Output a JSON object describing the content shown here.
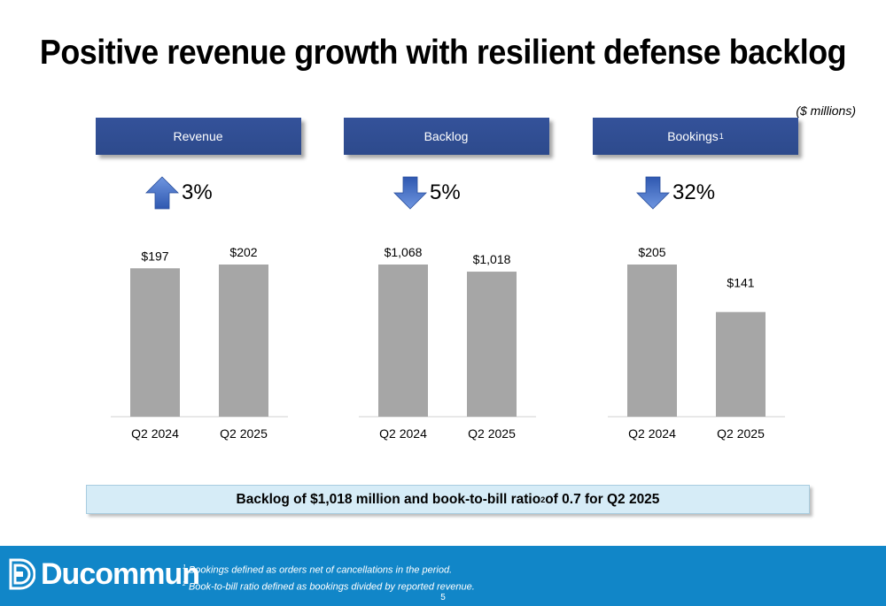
{
  "title": "Positive revenue growth with resilient defense backlog",
  "units": "($ millions)",
  "panels": [
    {
      "label": "Revenue",
      "sup": "",
      "direction": "up",
      "change": "3%"
    },
    {
      "label": "Backlog",
      "sup": "",
      "direction": "down",
      "change": "5%"
    },
    {
      "label": "Bookings",
      "sup": "1",
      "direction": "down",
      "change": "32%"
    }
  ],
  "chart_data": [
    {
      "type": "bar",
      "title": "Revenue",
      "categories": [
        "Q2 2024",
        "Q2 2025"
      ],
      "values": [
        197,
        202
      ],
      "value_labels": [
        "$197",
        "$202"
      ],
      "bar_color": "#a6a6a6"
    },
    {
      "type": "bar",
      "title": "Backlog",
      "categories": [
        "Q2 2024",
        "Q2 2025"
      ],
      "values": [
        1068,
        1018
      ],
      "value_labels": [
        "$1,068",
        "$1,018"
      ],
      "bar_color": "#a6a6a6"
    },
    {
      "type": "bar",
      "title": "Bookings",
      "categories": [
        "Q2 2024",
        "Q2 2025"
      ],
      "values": [
        205,
        141
      ],
      "value_labels": [
        "$205",
        "$141"
      ],
      "bar_color": "#a6a6a6"
    }
  ],
  "banner": {
    "text_before": "Backlog of $1,018 million and book-to-bill ratio",
    "sup": "2",
    "text_after": " of 0.7 for Q2 2025"
  },
  "footer": {
    "brand": "Ducommun",
    "notes": [
      {
        "sup": "1",
        "text": " Bookings defined as orders net of cancellations in the period."
      },
      {
        "sup": "2",
        "text": " Book-to-bill ratio defined as bookings divided by reported revenue."
      }
    ],
    "page": "5"
  },
  "colors": {
    "header": "#2d4a8c",
    "footer": "#1186c8",
    "arrow": "#4a72c6",
    "banner": "#d6ecf7"
  }
}
